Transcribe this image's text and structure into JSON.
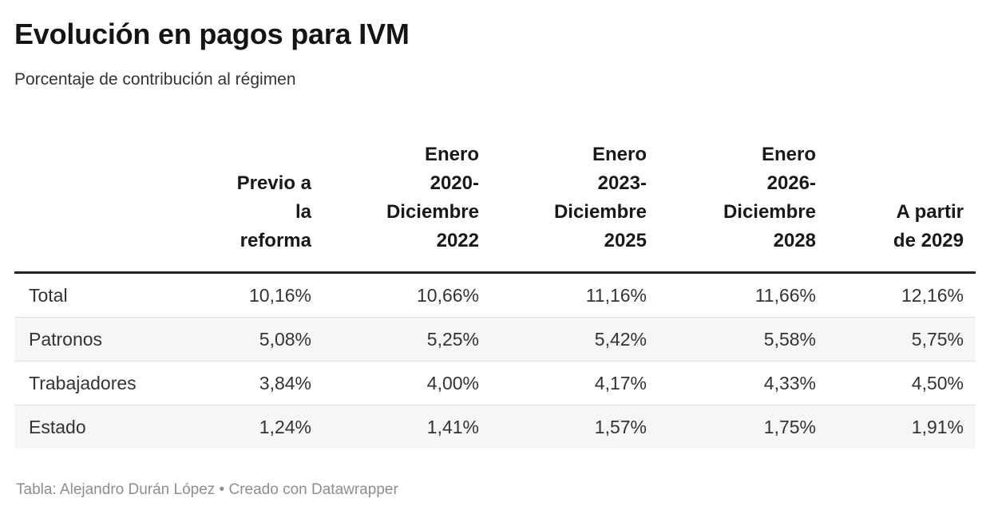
{
  "chart_data": {
    "type": "table",
    "title": "Evolución en pagos para IVM",
    "subtitle": "Porcentaje de contribución al régimen",
    "columns": [
      {
        "label": "",
        "align": "left"
      },
      {
        "label": "Previo a\nla\nreforma",
        "align": "right"
      },
      {
        "label": "Enero\n2020-\nDiciembre\n2022",
        "align": "right"
      },
      {
        "label": "Enero\n2023-\nDiciembre\n2025",
        "align": "right"
      },
      {
        "label": "Enero\n2026-\nDiciembre\n2028",
        "align": "right"
      },
      {
        "label": "A partir\nde 2029",
        "align": "right"
      }
    ],
    "rows": [
      {
        "label": "Total",
        "values": [
          "10,16%",
          "10,66%",
          "11,16%",
          "11,66%",
          "12,16%"
        ]
      },
      {
        "label": "Patronos",
        "values": [
          "5,08%",
          "5,25%",
          "5,42%",
          "5,58%",
          "5,75%"
        ]
      },
      {
        "label": "Trabajadores",
        "values": [
          "3,84%",
          "4,00%",
          "4,17%",
          "4,33%",
          "4,50%"
        ]
      },
      {
        "label": "Estado",
        "values": [
          "1,24%",
          "1,41%",
          "1,57%",
          "1,75%",
          "1,91%"
        ]
      }
    ]
  },
  "footer": {
    "credit": "Tabla: Alejandro Durán López • Creado con Datawrapper"
  }
}
